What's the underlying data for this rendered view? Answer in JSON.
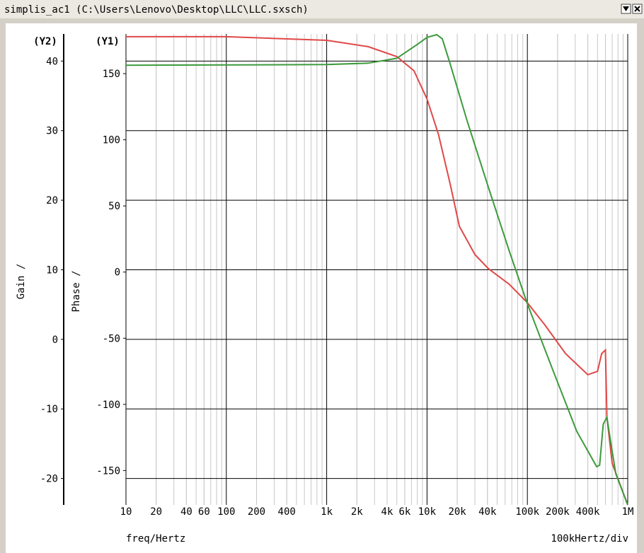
{
  "window_title": "simplis_ac1 (C:\\Users\\Lenovo\\Desktop\\LLC\\LLC.sxsch)",
  "chart_data": {
    "type": "line",
    "log_x": true,
    "grid": true,
    "minor_grid": true,
    "y2_axis_title": "(Y2)",
    "y_axis_title": "(Y1)",
    "y2_label": "Gain /",
    "y_label": "Phase /",
    "x_label": "freq/Hertz",
    "x_scale_note": "100kHertz/div",
    "xlim": [
      10,
      1000000
    ],
    "xticks": [
      10,
      20,
      40,
      60,
      100,
      200,
      400,
      {
        "value": 1000,
        "label": "1k"
      },
      {
        "value": 2000,
        "label": "2k"
      },
      {
        "value": 4000,
        "label": "4k"
      },
      {
        "value": 6000,
        "label": "6k"
      },
      {
        "value": 10000,
        "label": "10k"
      },
      {
        "value": 20000,
        "label": "20k"
      },
      {
        "value": 40000,
        "label": "40k"
      },
      {
        "value": 100000,
        "label": "100k"
      },
      {
        "value": 200000,
        "label": "200k"
      },
      {
        "value": 400000,
        "label": "400k"
      },
      {
        "value": 1000000,
        "label": "1M"
      }
    ],
    "ylim": [
      -176,
      180
    ],
    "yticks": [
      150,
      100,
      50,
      0,
      -50,
      -100,
      -150
    ],
    "y2lim": [
      -23.8,
      43.9
    ],
    "y2ticks": [
      40,
      30,
      20,
      10,
      0,
      -10,
      -20
    ],
    "series": [
      {
        "color": "#e04848",
        "axis": "y",
        "x": [
          10,
          100,
          1000,
          2600,
          5000,
          7400,
          10000,
          13000,
          17000,
          21000,
          30000,
          41000,
          66000,
          100000,
          150000,
          240000,
          400000,
          500000,
          550000,
          600000,
          620000,
          700000,
          1000000
        ],
        "values": [
          177.9,
          177.9,
          175.2,
          170.4,
          162.9,
          152.2,
          130.8,
          104,
          66.6,
          34.6,
          13.2,
          2.5,
          -9.2,
          -23.1,
          -40.2,
          -61.6,
          -77.6,
          -75,
          -61.6,
          -58.9,
          -109.7,
          -144.5,
          -176
        ]
      },
      {
        "color": "#3c9a3c",
        "axis": "y2",
        "x": [
          10,
          1000,
          2600,
          5000,
          8000,
          10000,
          12500,
          14200,
          17000,
          25000,
          41000,
          66000,
          100000,
          176000,
          310000,
          490000,
          525000,
          570000,
          620000,
          667000,
          760000,
          1000000
        ],
        "values": [
          39.4,
          39.5,
          39.7,
          40.4,
          42.4,
          43.4,
          43.8,
          43.2,
          39.6,
          31.5,
          21.8,
          12.7,
          5.1,
          -4.1,
          -13.2,
          -18.3,
          -18.1,
          -12.2,
          -11.2,
          -14.2,
          -19.3,
          -23.8
        ]
      }
    ]
  }
}
